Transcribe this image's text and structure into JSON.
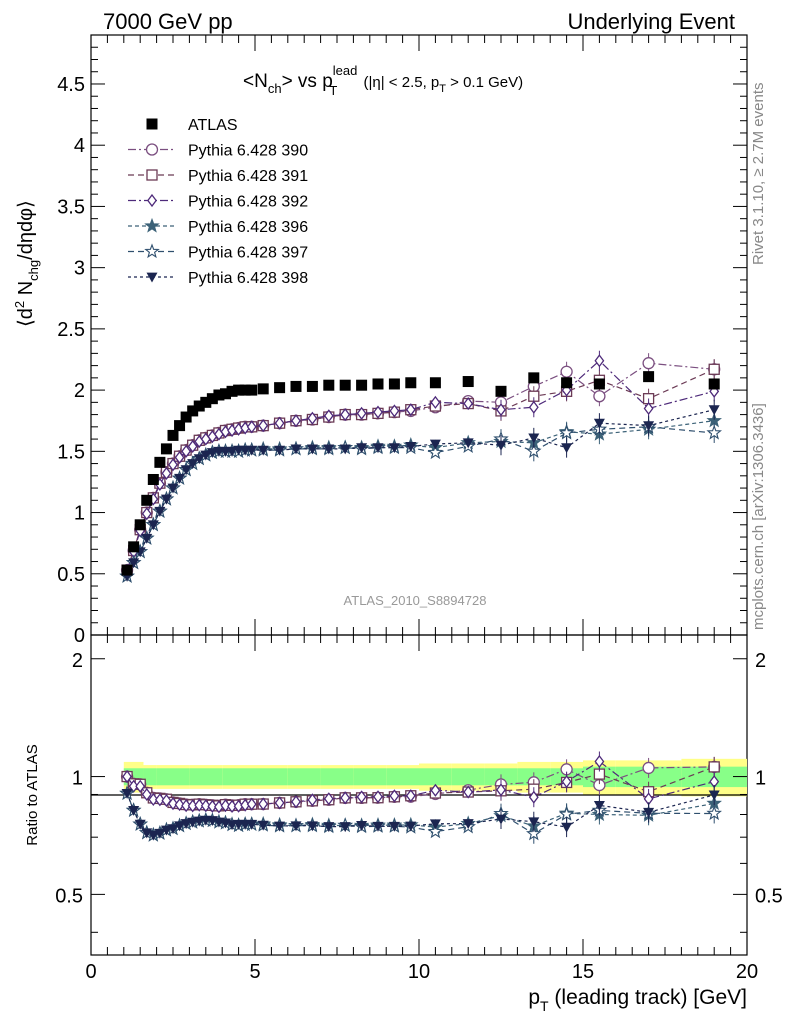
{
  "header": {
    "left": "7000 GeV pp",
    "right": "Underlying Event"
  },
  "side_labels": {
    "rivet": "Rivet 3.1.10, ≥ 2.7M events",
    "mcplots": "mcplots.cern.ch [arXiv:1306.3436]"
  },
  "watermark": "ATLAS_2010_S8894728",
  "colors": {
    "atlas": "#000000",
    "p390": "#7b4f80",
    "p391": "#6b3a55",
    "p392": "#4e2a7a",
    "p396": "#3c6278",
    "p397": "#2f4f6e",
    "p398": "#1b2550",
    "band_yellow": "#ffff88",
    "band_green": "#88ff88"
  },
  "chart_data": [
    {
      "type": "line",
      "title": "<Nch> vs pT lead (|η| < 2.5, pT > 0.1 GeV)",
      "title_parts": {
        "a": "<N",
        "a_sub": "ch",
        "b": "> vs p",
        "b_sup": "lead",
        "b_sub": "T",
        "c": " (|η| < 2.5, p",
        "c_sub": "T",
        "d": " > 0.1 GeV)"
      },
      "ylabel": "⟨d² Nchg/dηdφ⟩",
      "ylabel_parts": {
        "a": "⟨d",
        "a_sup": "2",
        "b": " N",
        "b_sub": "chg",
        "c": "/dηdφ⟩"
      },
      "ylim": [
        0,
        4.9
      ],
      "xlim": [
        0,
        20
      ],
      "yticks": [
        "0",
        "0.5",
        "1",
        "1.5",
        "2",
        "2.5",
        "3",
        "3.5",
        "4",
        "4.5"
      ],
      "x": [
        1.1,
        1.3,
        1.5,
        1.7,
        1.9,
        2.1,
        2.3,
        2.5,
        2.7,
        2.9,
        3.1,
        3.3,
        3.5,
        3.7,
        3.9,
        4.1,
        4.3,
        4.5,
        4.7,
        4.9,
        5.25,
        5.75,
        6.25,
        6.75,
        7.25,
        7.75,
        8.25,
        8.75,
        9.25,
        9.75,
        10.5,
        11.5,
        12.5,
        13.5,
        14.5,
        15.5,
        17.0,
        19.0
      ],
      "series": [
        {
          "name": "ATLAS",
          "key": "atlas",
          "marker": "square-filled",
          "dash": "none",
          "values": [
            0.53,
            0.72,
            0.9,
            1.1,
            1.27,
            1.41,
            1.52,
            1.63,
            1.71,
            1.78,
            1.83,
            1.87,
            1.9,
            1.93,
            1.96,
            1.97,
            1.99,
            2.0,
            2.0,
            2.0,
            2.01,
            2.02,
            2.03,
            2.03,
            2.04,
            2.04,
            2.04,
            2.05,
            2.05,
            2.06,
            2.06,
            2.07,
            1.99,
            2.1,
            2.06,
            2.05,
            2.11,
            2.05
          ]
        },
        {
          "name": "Pythia 6.428 390",
          "key": "p390",
          "marker": "circle-open",
          "dash": "8,3,2,3",
          "values": [
            0.53,
            0.69,
            0.86,
            1.0,
            1.12,
            1.24,
            1.33,
            1.4,
            1.46,
            1.51,
            1.55,
            1.59,
            1.61,
            1.63,
            1.65,
            1.67,
            1.68,
            1.69,
            1.7,
            1.7,
            1.71,
            1.73,
            1.75,
            1.76,
            1.78,
            1.8,
            1.8,
            1.81,
            1.82,
            1.83,
            1.86,
            1.91,
            1.9,
            2.03,
            2.15,
            1.95,
            2.22,
            2.17
          ]
        },
        {
          "name": "Pythia 6.428 391",
          "key": "p391",
          "marker": "square-open",
          "dash": "6,4",
          "values": [
            0.53,
            0.69,
            0.86,
            1.0,
            1.12,
            1.24,
            1.33,
            1.4,
            1.46,
            1.51,
            1.55,
            1.59,
            1.61,
            1.63,
            1.65,
            1.67,
            1.68,
            1.69,
            1.7,
            1.7,
            1.71,
            1.73,
            1.75,
            1.76,
            1.78,
            1.8,
            1.8,
            1.81,
            1.82,
            1.84,
            1.87,
            1.89,
            1.83,
            1.95,
            1.99,
            2.08,
            1.93,
            2.17
          ]
        },
        {
          "name": "Pythia 6.428 392",
          "key": "p392",
          "marker": "diamond-open",
          "dash": "8,3,2,3",
          "values": [
            0.53,
            0.68,
            0.85,
            0.99,
            1.11,
            1.23,
            1.32,
            1.39,
            1.45,
            1.5,
            1.54,
            1.58,
            1.6,
            1.62,
            1.64,
            1.66,
            1.67,
            1.68,
            1.69,
            1.7,
            1.71,
            1.73,
            1.75,
            1.77,
            1.79,
            1.8,
            1.81,
            1.82,
            1.83,
            1.84,
            1.9,
            1.89,
            1.84,
            1.86,
            2.0,
            2.24,
            1.85,
            1.99
          ]
        },
        {
          "name": "Pythia 6.428 396",
          "key": "p396",
          "marker": "star-filled",
          "dash": "4,3",
          "values": [
            0.48,
            0.59,
            0.68,
            0.79,
            0.9,
            1.01,
            1.11,
            1.2,
            1.28,
            1.35,
            1.4,
            1.44,
            1.47,
            1.49,
            1.5,
            1.5,
            1.5,
            1.5,
            1.51,
            1.51,
            1.52,
            1.52,
            1.52,
            1.53,
            1.53,
            1.53,
            1.53,
            1.54,
            1.54,
            1.55,
            1.53,
            1.57,
            1.58,
            1.57,
            1.66,
            1.64,
            1.68,
            1.75
          ]
        },
        {
          "name": "Pythia 6.428 397",
          "key": "p397",
          "marker": "star-open",
          "dash": "6,4",
          "values": [
            0.48,
            0.59,
            0.68,
            0.79,
            0.9,
            1.01,
            1.11,
            1.2,
            1.28,
            1.35,
            1.4,
            1.44,
            1.47,
            1.49,
            1.5,
            1.5,
            1.5,
            1.5,
            1.51,
            1.51,
            1.51,
            1.51,
            1.52,
            1.52,
            1.52,
            1.53,
            1.52,
            1.53,
            1.53,
            1.53,
            1.49,
            1.54,
            1.6,
            1.5,
            1.65,
            1.68,
            1.7,
            1.65
          ]
        },
        {
          "name": "Pythia 6.428 398",
          "key": "p398",
          "marker": "triangle-down-filled",
          "dash": "3,3",
          "values": [
            0.48,
            0.59,
            0.68,
            0.79,
            0.9,
            1.01,
            1.11,
            1.2,
            1.28,
            1.35,
            1.4,
            1.44,
            1.47,
            1.49,
            1.5,
            1.5,
            1.5,
            1.51,
            1.51,
            1.51,
            1.51,
            1.51,
            1.52,
            1.52,
            1.52,
            1.52,
            1.53,
            1.53,
            1.53,
            1.54,
            1.56,
            1.57,
            1.55,
            1.61,
            1.53,
            1.73,
            1.71,
            1.84
          ]
        }
      ],
      "legend_position": "top-left"
    },
    {
      "type": "line",
      "title": "",
      "ylabel": "Ratio to ATLAS",
      "xlabel": "pT (leading track) [GeV]",
      "xlabel_parts": {
        "a": "p",
        "a_sub": "T",
        "b": " (leading track) [GeV]"
      },
      "ylim": [
        0.35,
        2.3
      ],
      "yticks": [
        "0.5",
        "1",
        "2"
      ],
      "xticks": [
        "0",
        "5",
        "10",
        "15",
        "20"
      ],
      "band_edges": [
        1.0,
        1.6,
        2.0,
        3.0,
        4.0,
        5.0,
        6.0,
        7.0,
        8.0,
        9.0,
        10.0,
        11.0,
        12.0,
        13.0,
        14.0,
        15.0,
        16.0,
        18.0,
        20.0
      ],
      "band_green": [
        0.05,
        0.05,
        0.05,
        0.05,
        0.05,
        0.05,
        0.05,
        0.05,
        0.05,
        0.05,
        0.05,
        0.05,
        0.05,
        0.05,
        0.05,
        0.06,
        0.06,
        0.06
      ],
      "band_yellow": [
        0.09,
        0.07,
        0.07,
        0.07,
        0.07,
        0.07,
        0.07,
        0.07,
        0.07,
        0.07,
        0.08,
        0.08,
        0.08,
        0.09,
        0.09,
        0.1,
        0.1,
        0.11
      ],
      "series_note": "ratios of each series to ATLAS"
    }
  ]
}
